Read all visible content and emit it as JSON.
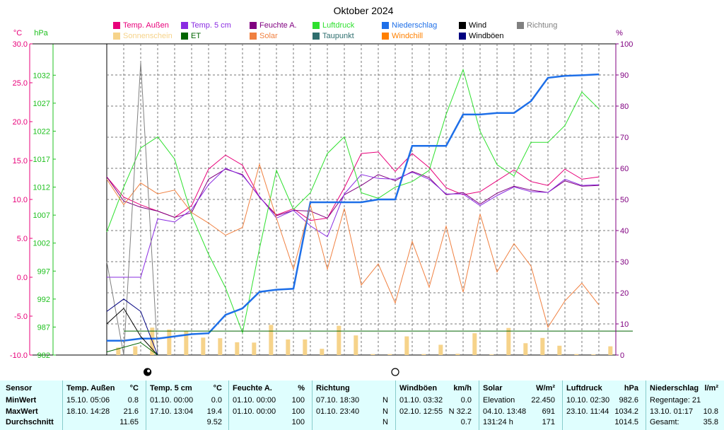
{
  "chart_data": {
    "type": "line",
    "title": "Oktober 2024",
    "axes": {
      "temp_label": "°C",
      "temp_ticks": [
        "30.0",
        "25.0",
        "20.0",
        "15.0",
        "10.0",
        "5.0",
        "0.0",
        "-5.0",
        "-10.0"
      ],
      "temp_range": [
        -10,
        30
      ],
      "pressure_label": "hPa",
      "pressure_ticks": [
        "1032",
        "1027",
        "1022",
        "1017",
        "1012",
        "1007",
        "1002",
        "997",
        "992",
        "987",
        "982"
      ],
      "pressure_range": [
        982,
        1037.6
      ],
      "percent_label": "%",
      "percent_ticks": [
        "100",
        "90",
        "80",
        "70",
        "60",
        "50",
        "40",
        "30",
        "20",
        "10",
        "0"
      ],
      "percent_range": [
        0,
        100
      ],
      "days": 31,
      "grid": true
    },
    "legend": [
      {
        "name": "Temp. Außen",
        "color": "#e8007a"
      },
      {
        "name": "Temp. 5 cm",
        "color": "#8a2be2"
      },
      {
        "name": "Feuchte A.",
        "color": "#800080"
      },
      {
        "name": "Luftdruck",
        "color": "#2ee02e"
      },
      {
        "name": "Niederschlag",
        "color": "#1e6fe8"
      },
      {
        "name": "Wind",
        "color": "#000000"
      },
      {
        "name": "Richtung",
        "color": "#808080"
      },
      {
        "name": "Sonnenschein",
        "color": "#f6d38a"
      },
      {
        "name": "ET",
        "color": "#006400"
      },
      {
        "name": "Solar",
        "color": "#f08040"
      },
      {
        "name": "Taupunkt",
        "color": "#2f6f6f"
      },
      {
        "name": "Windchill",
        "color": "#ff8000"
      },
      {
        "name": "Windböen",
        "color": "#000080"
      }
    ],
    "series": [
      {
        "name": "Temp. Außen",
        "axis": "temp",
        "color": "#e8007a",
        "x": [
          0,
          1,
          2,
          3,
          4,
          5,
          6,
          7,
          8,
          9,
          10,
          11,
          12,
          13,
          14,
          15,
          16,
          17,
          18,
          19,
          20,
          21,
          22,
          23,
          24,
          25,
          26,
          27,
          28,
          29
        ],
        "values": [
          12.9,
          10.3,
          9.3,
          8.5,
          7.7,
          9.2,
          13.9,
          15.7,
          14.4,
          10.3,
          8.0,
          8.8,
          7.3,
          7.6,
          11.5,
          15.9,
          16.1,
          13.6,
          15.9,
          14.1,
          11.5,
          10.6,
          11.0,
          12.4,
          13.8,
          12.3,
          11.8,
          13.9,
          12.6,
          12.9
        ]
      },
      {
        "name": "Feuchte A.",
        "axis": "temp",
        "color": "#800080",
        "x": [
          0,
          1,
          2,
          3,
          4,
          5,
          6,
          7,
          8,
          9,
          10,
          11,
          12,
          13,
          14,
          15,
          16,
          17,
          18,
          19,
          20,
          21,
          22,
          23,
          24,
          25,
          26,
          27,
          28,
          29
        ],
        "values": [
          12.9,
          9.8,
          9.0,
          8.5,
          7.7,
          8.3,
          12.6,
          13.9,
          13.2,
          10.3,
          7.9,
          8.6,
          8.5,
          7.6,
          10.6,
          11.8,
          13.2,
          12.4,
          13.6,
          12.8,
          10.6,
          10.9,
          9.4,
          10.8,
          11.7,
          11.2,
          10.9,
          12.4,
          11.7,
          11.8
        ]
      },
      {
        "name": "Temp. 5 cm",
        "axis": "temp",
        "color": "#8a2be2",
        "x": [
          0,
          1,
          2,
          3,
          4,
          5,
          6,
          7,
          8,
          9,
          10,
          11,
          12,
          13,
          14,
          15,
          16,
          17,
          18,
          19,
          20,
          21,
          22,
          23,
          24,
          25,
          26,
          27,
          28,
          29
        ],
        "values": [
          0.0,
          0.0,
          0.0,
          7.5,
          7.1,
          8.7,
          11.9,
          14.0,
          13.1,
          10.4,
          7.6,
          8.6,
          6.6,
          5.2,
          10.7,
          13.2,
          12.7,
          12.6,
          13.5,
          12.6,
          10.7,
          10.7,
          9.2,
          10.5,
          11.6,
          11.0,
          10.9,
          12.6,
          11.8,
          11.9
        ]
      },
      {
        "name": "Luftdruck",
        "axis": "pressure",
        "color": "#2ee02e",
        "x": [
          0,
          1,
          2,
          3,
          4,
          5,
          6,
          7,
          8,
          9,
          10,
          11,
          12,
          13,
          14,
          15,
          16,
          17,
          18,
          19,
          20,
          21,
          22,
          23,
          24,
          25,
          26,
          27,
          28,
          29
        ],
        "values": [
          1004.0,
          1012.0,
          1019.0,
          1021.0,
          1017.0,
          1007.0,
          1000.0,
          994.0,
          986.0,
          1001.0,
          1015.0,
          1008.0,
          1011.0,
          1018.0,
          1021.0,
          1011.0,
          1010.0,
          1012.0,
          1013.0,
          1015.0,
          1025.0,
          1033.0,
          1022.0,
          1016.0,
          1014.0,
          1020.0,
          1020.0,
          1023.0,
          1029.0,
          1026.0
        ]
      },
      {
        "name": "Niederschlag",
        "axis": "percent",
        "color": "#1e6fe8",
        "x": [
          0,
          1,
          2,
          3,
          4,
          5,
          6,
          7,
          8,
          9,
          10,
          11,
          12,
          13,
          14,
          15,
          16,
          17,
          18,
          19,
          20,
          21,
          22,
          23,
          24,
          25,
          26,
          27,
          28,
          29
        ],
        "values": [
          4.6,
          4.6,
          5.3,
          5.3,
          6.0,
          6.7,
          7.0,
          12.9,
          15.0,
          20.3,
          21.0,
          21.3,
          49.1,
          49.1,
          49.1,
          49.1,
          50.0,
          50.0,
          67.2,
          67.2,
          67.2,
          77.3,
          77.3,
          77.8,
          77.8,
          81.6,
          89.1,
          89.7,
          89.9,
          90.2
        ]
      },
      {
        "name": "Solar",
        "axis": "percent",
        "color": "#f08040",
        "x": [
          0,
          1,
          2,
          3,
          4,
          5,
          6,
          7,
          8,
          9,
          10,
          11,
          12,
          13,
          14,
          15,
          16,
          17,
          18,
          19,
          20,
          21,
          22,
          23,
          24,
          25,
          26,
          27,
          28,
          29
        ],
        "values": [
          56.5,
          48.3,
          55.3,
          51.8,
          53.0,
          45.8,
          42.4,
          38.5,
          41.0,
          61.3,
          44.0,
          27.6,
          48.2,
          27.6,
          47.1,
          22.5,
          29.3,
          16.7,
          36.5,
          21.8,
          41.4,
          20.2,
          45.3,
          26.7,
          35.8,
          28.6,
          8.9,
          17.4,
          23.1,
          16.1
        ],
        "x_alt": [
          0,
          0.95,
          2,
          2.9,
          4,
          4.9,
          6,
          7,
          8,
          9,
          10,
          11,
          12,
          13,
          14,
          15,
          16,
          17,
          18,
          19,
          20,
          21,
          22,
          23,
          24,
          25,
          26,
          27,
          28,
          29
        ]
      },
      {
        "name": "Richtung",
        "axis": "percent",
        "color": "#808080",
        "x": [
          0,
          1,
          2,
          3
        ],
        "values": [
          30.0,
          0.0,
          94.0,
          0.0
        ]
      },
      {
        "name": "Wind",
        "axis": "percent",
        "color": "#000000",
        "x": [
          0,
          1,
          2,
          3
        ],
        "values": [
          10.0,
          15.0,
          6.0,
          0.0
        ]
      },
      {
        "name": "Windböen",
        "axis": "percent",
        "color": "#000080",
        "x": [
          0,
          1,
          2,
          3
        ],
        "values": [
          14.0,
          18.0,
          14.0,
          0.0
        ]
      },
      {
        "name": "ET",
        "axis": "percent",
        "color": "#006400",
        "x": [
          0,
          2,
          3
        ],
        "values": [
          1.0,
          4.0,
          0.0
        ]
      },
      {
        "name": "ET-Linie",
        "axis": "percent",
        "color": "#006400",
        "x": [
          1,
          31
        ],
        "values": [
          7.7,
          7.7
        ]
      }
    ],
    "sunshine": {
      "name": "Sonnenschein",
      "color": "#f6d38a",
      "axis": "percent",
      "days": [
        1,
        2,
        3,
        4,
        5,
        6,
        7,
        8,
        9,
        10,
        11,
        12,
        13,
        14,
        15,
        16,
        17,
        18,
        19,
        20,
        21,
        22,
        23,
        24,
        25,
        26,
        27,
        28,
        29,
        30
      ],
      "values": [
        2.4,
        2.8,
        8.8,
        8.2,
        7.6,
        5.6,
        5.4,
        4.1,
        4.0,
        9.7,
        5.0,
        5.0,
        2.0,
        9.4,
        6.3,
        0.3,
        0.3,
        6.0,
        0.3,
        3.3,
        0.4,
        7.0,
        0.2,
        8.7,
        3.8,
        5.5,
        3.0,
        0.3,
        0.2,
        2.8
      ]
    },
    "markers": [
      {
        "symbol": "full-moon",
        "day": 2.4
      },
      {
        "symbol": "new-moon",
        "day": 17.0
      }
    ]
  },
  "stats": {
    "sensor": {
      "header": "Sensor",
      "rows": [
        "MinWert",
        "MaxWert",
        "Durchschnitt"
      ]
    },
    "columns": [
      {
        "title": "Temp. Außen",
        "unit": "°C",
        "rows": [
          [
            "15.10.  05:06",
            "0.8"
          ],
          [
            "18.10.  14:28",
            "21.6"
          ],
          [
            "",
            "11.65"
          ]
        ]
      },
      {
        "title": "Temp. 5 cm",
        "unit": "°C",
        "rows": [
          [
            "01.10.  00:00",
            "0.0"
          ],
          [
            "17.10.  13:04",
            "19.4"
          ],
          [
            "",
            "9.52"
          ]
        ]
      },
      {
        "title": "Feuchte A.",
        "unit": "%",
        "rows": [
          [
            "01.10.  00:00",
            "100"
          ],
          [
            "01.10.  00:00",
            "100"
          ],
          [
            "",
            "100"
          ]
        ]
      },
      {
        "title": "Richtung",
        "unit": "",
        "rows": [
          [
            "07.10.  18:30",
            "N"
          ],
          [
            "01.10.  23:40",
            "N"
          ],
          [
            "",
            "N"
          ]
        ]
      },
      {
        "title": "Windböen",
        "unit": "km/h",
        "rows": [
          [
            "01.10.  03:32",
            "0.0"
          ],
          [
            "02.10.  12:55",
            "N 32.2"
          ],
          [
            "",
            "0.7"
          ]
        ]
      },
      {
        "title": "Solar",
        "unit": "W/m²",
        "rows": [
          [
            "Elevation",
            "22.450"
          ],
          [
            "04.10.  13:48",
            "691"
          ],
          [
            "131:24 h",
            "171"
          ]
        ]
      },
      {
        "title": "Luftdruck",
        "unit": "hPa",
        "rows": [
          [
            "10.10.  02:30",
            "982.6"
          ],
          [
            "23.10.  11:44",
            "1034.2"
          ],
          [
            "",
            "1014.5"
          ]
        ]
      },
      {
        "title": "Niederschlag",
        "unit": "l/m²",
        "rows": [
          [
            "Regentage: 21",
            ""
          ],
          [
            "13.10.  01:17",
            "10.8"
          ],
          [
            "Gesamt:",
            "35.8"
          ]
        ]
      }
    ]
  }
}
